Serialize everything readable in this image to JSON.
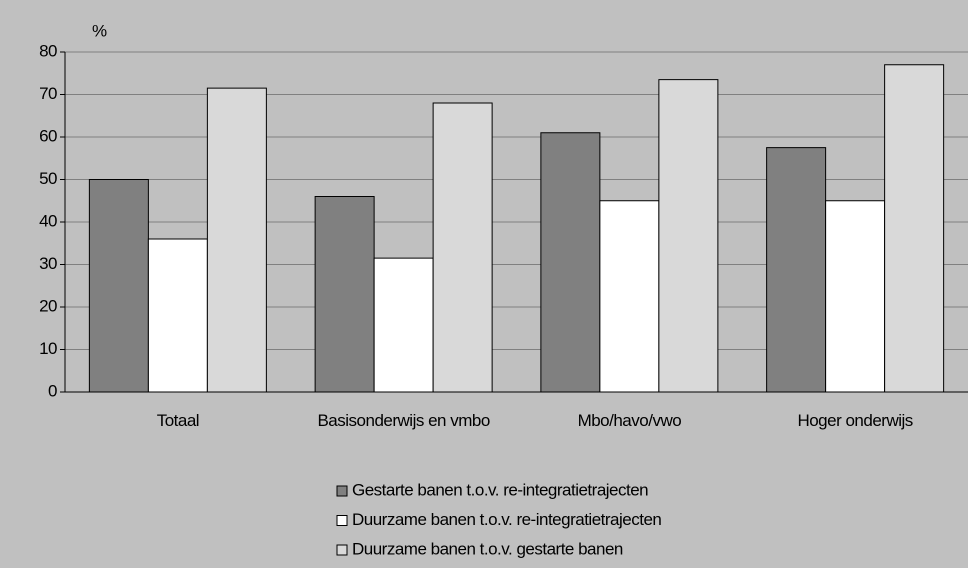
{
  "chart_data": {
    "type": "bar",
    "y_label": "%",
    "categories": [
      "Totaal",
      "Basisonderwijs en vmbo",
      "Mbo/havo/vwo",
      "Hoger onderwijs"
    ],
    "series": [
      {
        "name": "Gestarte banen t.o.v. re-integratietrajecten",
        "color": "#808080",
        "values": [
          50,
          46,
          61,
          57.5
        ]
      },
      {
        "name": "Duurzame banen t.o.v. re-integratietrajecten",
        "color": "#ffffff",
        "values": [
          36,
          31.5,
          45,
          45
        ]
      },
      {
        "name": "Duurzame banen t.o.v. gestarte banen",
        "color": "#d9d9d9",
        "values": [
          71.5,
          68,
          73.5,
          77
        ]
      }
    ],
    "ylim": [
      0,
      80
    ],
    "yticks": [
      0,
      10,
      20,
      30,
      40,
      50,
      60,
      70,
      80
    ],
    "grid": true
  }
}
